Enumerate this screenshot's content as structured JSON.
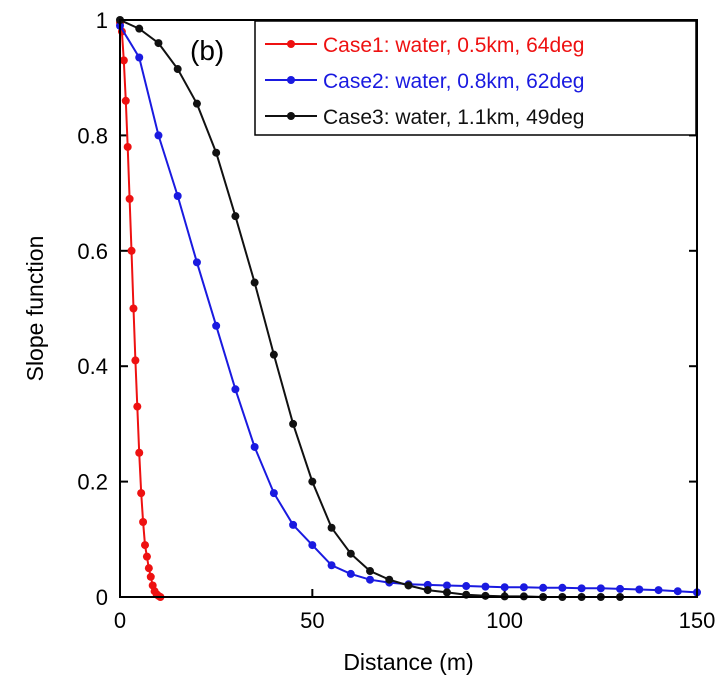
{
  "chart_data": {
    "type": "line",
    "title": "",
    "panel_label": "(b)",
    "xlabel": "Distance (m)",
    "ylabel": "Slope function",
    "xlim": [
      0,
      150
    ],
    "ylim": [
      0,
      1
    ],
    "x_ticks": [
      0,
      50,
      100,
      150
    ],
    "x_tick_labels": [
      "0",
      "50",
      "100",
      "150"
    ],
    "y_ticks": [
      0,
      0.2,
      0.4,
      0.6,
      0.8,
      1
    ],
    "y_tick_labels": [
      "0",
      "0.2",
      "0.4",
      "0.6",
      "0.8",
      "1"
    ],
    "grid": false,
    "legend_position": "top-right",
    "series": [
      {
        "name": "Case1: water, 0.5km, 64deg",
        "color": "#ee1111",
        "x": [
          0,
          0.5,
          1,
          1.5,
          2,
          2.5,
          3,
          3.5,
          4,
          4.5,
          5,
          5.5,
          6,
          6.5,
          7,
          7.5,
          8,
          8.5,
          9,
          9.5,
          10,
          10.5
        ],
        "y": [
          0.995,
          0.98,
          0.93,
          0.86,
          0.78,
          0.69,
          0.6,
          0.5,
          0.41,
          0.33,
          0.25,
          0.18,
          0.13,
          0.09,
          0.07,
          0.05,
          0.035,
          0.02,
          0.01,
          0.005,
          0.002,
          0.0
        ]
      },
      {
        "name": "Case2: water, 0.8km, 62deg",
        "color": "#1a1ae0",
        "x": [
          0,
          5,
          10,
          15,
          20,
          25,
          30,
          35,
          40,
          45,
          50,
          55,
          60,
          65,
          70,
          75,
          80,
          85,
          90,
          95,
          100,
          105,
          110,
          115,
          120,
          125,
          130,
          135,
          140,
          145,
          150
        ],
        "y": [
          0.99,
          0.935,
          0.8,
          0.695,
          0.58,
          0.47,
          0.36,
          0.26,
          0.18,
          0.125,
          0.09,
          0.055,
          0.04,
          0.03,
          0.025,
          0.022,
          0.021,
          0.02,
          0.019,
          0.018,
          0.017,
          0.017,
          0.016,
          0.016,
          0.015,
          0.015,
          0.014,
          0.013,
          0.012,
          0.01,
          0.008
        ]
      },
      {
        "name": "Case3: water, 1.1km, 49deg",
        "color": "#111111",
        "x": [
          0,
          5,
          10,
          15,
          20,
          25,
          30,
          35,
          40,
          45,
          50,
          55,
          60,
          65,
          70,
          75,
          80,
          85,
          90,
          95,
          100,
          105,
          110,
          115,
          120,
          125,
          130
        ],
        "y": [
          1.0,
          0.985,
          0.96,
          0.915,
          0.855,
          0.77,
          0.66,
          0.545,
          0.42,
          0.3,
          0.2,
          0.12,
          0.075,
          0.045,
          0.03,
          0.02,
          0.012,
          0.008,
          0.004,
          0.002,
          0.001,
          0.001,
          0.0,
          0.0,
          0.0,
          0.0,
          0.0
        ]
      }
    ]
  }
}
